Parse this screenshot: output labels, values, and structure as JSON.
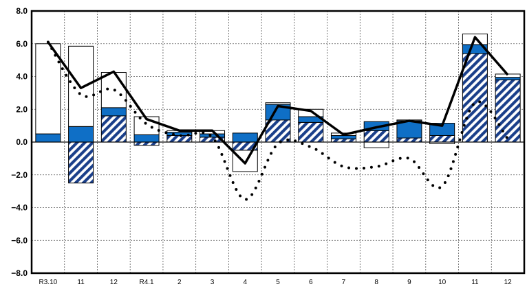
{
  "chart_data": {
    "type": "bar",
    "title": "",
    "xlabel": "",
    "ylabel": "",
    "ylim": [
      -8,
      8
    ],
    "yticks": [
      "8.0",
      "6.0",
      "4.0",
      "2.0",
      "0.0",
      "−2.0",
      "−4.0",
      "−6.0",
      "−8.0"
    ],
    "categories": [
      "R3.10",
      "11",
      "12",
      "R4.1",
      "2",
      "3",
      "4",
      "5",
      "6",
      "7",
      "8",
      "9",
      "10",
      "11",
      "12"
    ],
    "grid": true,
    "series": [
      {
        "style": "hatched",
        "color": "#1565b8",
        "values": [
          0,
          -2.5,
          1.6,
          -0.2,
          0.4,
          0.3,
          -0.5,
          1.35,
          1.2,
          0.2,
          0.7,
          0.25,
          0.4,
          5.4,
          3.8
        ]
      },
      {
        "style": "solid",
        "color": "#0f6fc6",
        "values": [
          0.5,
          0.95,
          0.5,
          0.45,
          0.2,
          0.2,
          0.55,
          0.95,
          0.35,
          0.2,
          0.55,
          1.05,
          0.75,
          0.55,
          0.15
        ]
      },
      {
        "style": "outline",
        "color": "#ffffff",
        "values": [
          5.5,
          4.9,
          2.15,
          1.1,
          0.1,
          0.2,
          -1.3,
          0.1,
          0.45,
          0.15,
          -0.35,
          0.05,
          -0.1,
          0.65,
          0.2
        ]
      },
      {
        "style": "line",
        "color": "#000000",
        "values": [
          6.1,
          3.3,
          4.3,
          1.4,
          0.7,
          0.7,
          -1.3,
          2.2,
          1.9,
          0.45,
          0.9,
          1.3,
          1.0,
          6.4,
          4.1
        ]
      },
      {
        "style": "dotted",
        "color": "#000000",
        "values": [
          6.1,
          2.9,
          3.2,
          1.1,
          0.4,
          0.3,
          -3.5,
          -0.1,
          -0.3,
          -1.5,
          -1.5,
          -1.0,
          -2.7,
          2.4,
          0.2
        ]
      }
    ]
  }
}
